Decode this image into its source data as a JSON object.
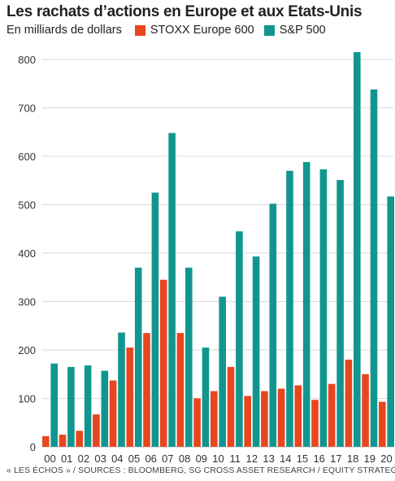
{
  "header": {
    "title": "Les rachats d’actions en Europe et aux Etats-Unis",
    "unit": "En milliards de dollars"
  },
  "source": "« LES ÉCHOS » / SOURCES : BLOOMBERG, SG CROSS ASSET RESEARCH / EQUITY STRATEGY",
  "colors": {
    "europe": "#e8461e",
    "us": "#11968f",
    "grid": "#d9d9d9"
  },
  "chart_data": {
    "type": "bar",
    "title": "Les rachats d’actions en Europe et aux Etats-Unis",
    "ylabel": "En milliards de dollars",
    "xlabel": "",
    "ylim": [
      0,
      820
    ],
    "yticks": [
      0,
      100,
      200,
      300,
      400,
      500,
      600,
      700,
      800
    ],
    "grid": true,
    "legend": "top-left",
    "categories": [
      "00",
      "01",
      "02",
      "03",
      "04",
      "05",
      "06",
      "07",
      "08",
      "09",
      "10",
      "11",
      "12",
      "13",
      "14",
      "15",
      "16",
      "17",
      "18",
      "19",
      "20"
    ],
    "series": [
      {
        "name": "STOXX Europe 600",
        "values": [
          22,
          25,
          33,
          67,
          137,
          205,
          235,
          345,
          235,
          100,
          115,
          165,
          105,
          115,
          120,
          127,
          97,
          130,
          180,
          150,
          93
        ]
      },
      {
        "name": "S&P 500",
        "values": [
          172,
          165,
          168,
          157,
          236,
          370,
          525,
          648,
          370,
          205,
          310,
          445,
          393,
          502,
          570,
          588,
          573,
          551,
          815,
          738,
          517
        ]
      }
    ]
  }
}
